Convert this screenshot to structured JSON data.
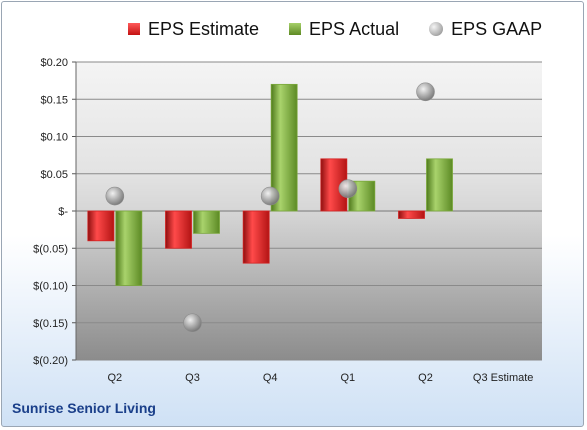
{
  "company": "Sunrise Senior Living",
  "legend": [
    {
      "name": "EPS Estimate",
      "swatch": "estimate"
    },
    {
      "name": "EPS Actual",
      "swatch": "actual"
    },
    {
      "name": "EPS GAAP",
      "swatch": "gaap"
    }
  ],
  "colors": {
    "estimate": "#d42020",
    "actual": "#7aa83a",
    "gaap": "#a8a8a8"
  },
  "chart_data": {
    "type": "bar",
    "categories": [
      "Q2",
      "Q3",
      "Q4",
      "Q1",
      "Q2",
      "Q3 Estimate"
    ],
    "series": [
      {
        "name": "EPS Estimate",
        "type": "bar",
        "values": [
          -0.04,
          -0.05,
          -0.07,
          0.07,
          -0.01,
          null
        ]
      },
      {
        "name": "EPS Actual",
        "type": "bar",
        "values": [
          -0.1,
          -0.03,
          0.17,
          0.04,
          0.07,
          null
        ]
      },
      {
        "name": "EPS GAAP",
        "type": "scatter",
        "values": [
          0.02,
          -0.15,
          0.02,
          0.03,
          0.16,
          null
        ]
      }
    ],
    "ylim": [
      -0.2,
      0.2
    ],
    "yticks": [
      0.2,
      0.15,
      0.1,
      0.05,
      0,
      -0.05,
      -0.1,
      -0.15,
      -0.2
    ],
    "ytick_labels": [
      "$0.20",
      "$0.15",
      "$0.10",
      "$0.05",
      "$-",
      "$(0.05)",
      "$(0.10)",
      "$(0.15)",
      "$(0.20)"
    ],
    "grid": true,
    "legend_position": "top"
  }
}
